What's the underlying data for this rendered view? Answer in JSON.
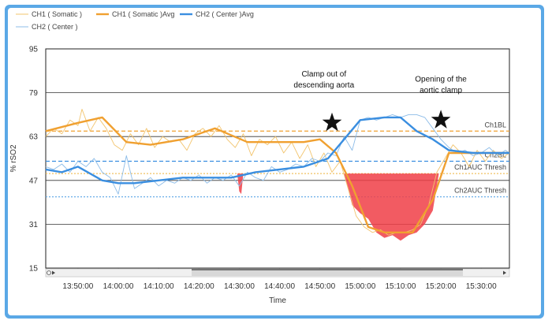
{
  "chart_data": {
    "type": "line",
    "xlabel": "Time",
    "ylabel": "% rSO2",
    "ylim": [
      15,
      95
    ],
    "yticks": [
      15,
      31,
      47,
      63,
      79,
      95
    ],
    "xticks": [
      "13:50:00",
      "14:00:00",
      "14:10:00",
      "14:20:00",
      "14:30:00",
      "14:40:00",
      "14:50:00",
      "15:00:00",
      "15:10:00",
      "15:20:00",
      "15:30:00"
    ],
    "xtick_minutes": [
      830,
      840,
      850,
      860,
      870,
      880,
      890,
      900,
      910,
      920,
      930
    ],
    "xlim_minutes": [
      822,
      937
    ],
    "grid_y": true,
    "legend": {
      "position": "top-left",
      "items": [
        {
          "label": "CH1 ( Somatic )",
          "style": "thin",
          "color": "#f2c46d"
        },
        {
          "label": "CH1 ( Somatic )Avg",
          "style": "thick",
          "color": "#f0a030"
        },
        {
          "label": "CH2 ( Center )Avg",
          "style": "thick",
          "color": "#3a8ee0"
        },
        {
          "label": "CH2 ( Center )",
          "style": "thin",
          "color": "#8cbce8"
        }
      ]
    },
    "reference_lines": [
      {
        "label": "Ch1BL",
        "y": 65,
        "color": "#f0a030",
        "style": "dashed"
      },
      {
        "label": "Ch2BL",
        "y": 54,
        "color": "#3a8ee0",
        "style": "dashed"
      },
      {
        "label": "Ch1AUC Thresh",
        "y": 49.5,
        "color": "#f0c060",
        "style": "dotted"
      },
      {
        "label": "Ch2AUC Thresh",
        "y": 41,
        "color": "#6aaee8",
        "style": "dotted"
      }
    ],
    "series": [
      {
        "name": "CH1 ( Somatic )Avg",
        "color": "#f0a030",
        "t": [
          822,
          830,
          836,
          842,
          848,
          856,
          864,
          872,
          880,
          886,
          890,
          894,
          898,
          902,
          906,
          909,
          913,
          918,
          922,
          928,
          937
        ],
        "values": [
          65,
          68,
          70,
          61,
          60,
          62,
          66,
          61,
          61,
          61,
          62,
          57,
          45,
          30,
          28,
          28,
          28,
          40,
          57,
          57,
          57
        ]
      },
      {
        "name": "CH2 ( Center )Avg",
        "color": "#3a8ee0",
        "t": [
          822,
          826,
          830,
          836,
          840,
          844,
          850,
          856,
          862,
          868,
          874,
          880,
          886,
          892,
          896,
          900,
          906,
          910,
          914,
          918,
          922,
          928,
          937
        ],
        "values": [
          51,
          50,
          52,
          47,
          46,
          46,
          47,
          48,
          48,
          48,
          50,
          51,
          52,
          55,
          62,
          69,
          70,
          70,
          65,
          62,
          58,
          57,
          57
        ]
      },
      {
        "name": "CH1 ( Somatic )",
        "color": "#f2c46d",
        "t": [
          822,
          824,
          826,
          828,
          830,
          831,
          833,
          835,
          837,
          839,
          841,
          843,
          845,
          847,
          849,
          851,
          853,
          855,
          857,
          859,
          861,
          863,
          865,
          867,
          869,
          871,
          873,
          875,
          877,
          879,
          881,
          883,
          885,
          887,
          889,
          891,
          893,
          895,
          897,
          899,
          901,
          903,
          905,
          907,
          909,
          911,
          913,
          915,
          917,
          919,
          921,
          923,
          925,
          927,
          929,
          931,
          933,
          935,
          937
        ],
        "values": [
          63,
          66,
          64,
          69,
          67,
          73,
          65,
          70,
          66,
          60,
          58,
          64,
          60,
          66,
          59,
          63,
          61,
          62,
          58,
          64,
          66,
          63,
          67,
          62,
          59,
          64,
          56,
          62,
          60,
          63,
          57,
          61,
          55,
          60,
          52,
          57,
          50,
          54,
          44,
          34,
          30,
          28,
          29,
          27,
          28,
          28,
          29,
          31,
          38,
          50,
          55,
          60,
          57,
          52,
          58,
          54,
          58,
          55,
          57
        ]
      },
      {
        "name": "CH2 ( Center )",
        "color": "#8cbce8",
        "t": [
          822,
          824,
          826,
          828,
          830,
          832,
          834,
          836,
          838,
          840,
          842,
          844,
          846,
          848,
          850,
          852,
          854,
          856,
          858,
          860,
          862,
          864,
          866,
          868,
          870,
          872,
          874,
          876,
          878,
          880,
          882,
          884,
          886,
          888,
          890,
          892,
          894,
          896,
          898,
          900,
          902,
          904,
          906,
          908,
          910,
          912,
          914,
          916,
          918,
          920,
          922,
          924,
          926,
          928,
          930,
          932,
          934,
          936,
          937
        ],
        "values": [
          52,
          51,
          53,
          50,
          54,
          52,
          55,
          50,
          48,
          42,
          56,
          44,
          46,
          48,
          45,
          47,
          46,
          48,
          47,
          49,
          46,
          48,
          47,
          49,
          45,
          50,
          48,
          47,
          52,
          50,
          51,
          53,
          52,
          55,
          54,
          57,
          56,
          63,
          58,
          69,
          70,
          69,
          70,
          71,
          70,
          71,
          71,
          70,
          66,
          62,
          59,
          57,
          58,
          56,
          57,
          59,
          56,
          58,
          57
        ]
      }
    ],
    "auc_regions": [
      {
        "color": "#f03e46",
        "top": 49.5,
        "t": [
          896,
          898,
          900,
          902,
          904,
          906,
          908,
          910,
          912,
          914,
          916,
          918,
          919.5
        ],
        "bottom": [
          49.5,
          38,
          35,
          33,
          28,
          26,
          27,
          25,
          27,
          28,
          31,
          36,
          49.5
        ]
      },
      {
        "color": "#f03e46",
        "top": 49.5,
        "t": [
          869.5,
          870,
          870.5,
          871
        ],
        "bottom": [
          49.5,
          43,
          42,
          49.5
        ]
      }
    ],
    "annotations": [
      {
        "text_lines": [
          "Clamp out of",
          "descending aorta"
        ],
        "t": 891,
        "y": 85,
        "star_t": 893,
        "star_y": 68
      },
      {
        "text_lines": [
          "Opening of the",
          "aortic clamp"
        ],
        "t": 920,
        "y": 83,
        "star_t": 920,
        "star_y": 69
      }
    ]
  }
}
